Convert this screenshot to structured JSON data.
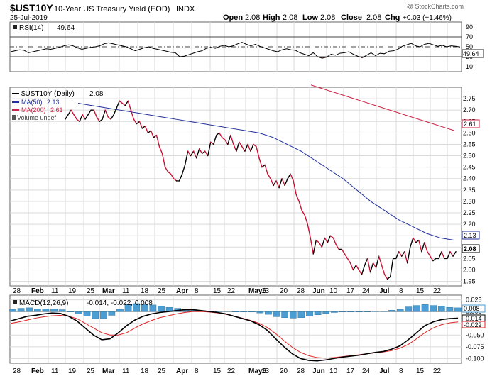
{
  "header": {
    "symbol": "$UST10Y",
    "name": "10-Year US Treasury Yield (EOD)",
    "exchange": "INDX",
    "date": "25-Jul-2019",
    "open_label": "Open",
    "open": "2.08",
    "high_label": "High",
    "high": "2.08",
    "low_label": "Low",
    "low": "2.08",
    "close_label": "Close",
    "close": "2.08",
    "chg_label": "Chg",
    "chg": "+0.03 (+1.46%)",
    "brand": "@ StockCharts.com"
  },
  "colors": {
    "price": "#000000",
    "price_down": "#cc1133",
    "ma50": "#1f2f9a",
    "ma200": "#cc2244",
    "rsi": "#000000",
    "rsi_fill": "#7a4a4a",
    "macd": "#000000",
    "signal": "#dd2222",
    "hist": "#4a9ed3",
    "grid": "#d9d9d9"
  },
  "chart_data": [
    {
      "type": "line",
      "panel": "rsi",
      "legend": [
        {
          "label": "RSI(14)",
          "value": "49.64"
        }
      ],
      "y_ticks": [
        "90",
        "70",
        "50",
        "30",
        "10"
      ],
      "ylim": [
        0,
        100
      ],
      "levels": [
        70,
        50,
        30
      ],
      "last_value_label": "49.64",
      "values": [
        40,
        42,
        44,
        43,
        38,
        40,
        42,
        44,
        46,
        45,
        47,
        49,
        52,
        54,
        52,
        48,
        45,
        47,
        49,
        50,
        52,
        56,
        58,
        56,
        54,
        52,
        50,
        46,
        42,
        45,
        48,
        50,
        47,
        45,
        43,
        41,
        39,
        38,
        30,
        31,
        34,
        37,
        40,
        42,
        47,
        49,
        47,
        51,
        53,
        50,
        52,
        56,
        59,
        55,
        52,
        55,
        51,
        48,
        45,
        42,
        40,
        44,
        46,
        44,
        43,
        38,
        35,
        32,
        38,
        30,
        27,
        29,
        35,
        33,
        37,
        38,
        40,
        35,
        31,
        28,
        33,
        38,
        32,
        37,
        36,
        41,
        42,
        45,
        51,
        54,
        57,
        52,
        50,
        55,
        57,
        54,
        51,
        53,
        50,
        52,
        51,
        49.64
      ]
    },
    {
      "type": "line",
      "panel": "price",
      "title": "10-Year US Treasury Yield (EOD)",
      "legend": [
        {
          "label": "$UST10Y (Daily)",
          "value": "2.08",
          "color": "#000000"
        },
        {
          "label": "MA(50)",
          "value": "2.13",
          "color": "#1f2f9a"
        },
        {
          "label": "MA(200)",
          "value": "2.61",
          "color": "#cc2244"
        },
        {
          "label": "Volume undef",
          "value": "",
          "color": "#444444"
        }
      ],
      "y_ticks": [
        "2.75",
        "2.70",
        "2.65",
        "2.60",
        "2.55",
        "2.50",
        "2.45",
        "2.40",
        "2.35",
        "2.30",
        "2.25",
        "2.20",
        "2.15",
        "2.10",
        "2.05",
        "2.00",
        "1.95"
      ],
      "ylim": [
        1.93,
        2.8
      ],
      "x_labels": [
        "28",
        "Feb",
        "11",
        "19",
        "25",
        "Mar",
        "11",
        "18",
        "25",
        "Apr",
        "8",
        "15",
        "22",
        "May6",
        "13",
        "20",
        "28",
        "Jun",
        "10",
        "17",
        "24",
        "Jul",
        "8",
        "15",
        "22"
      ],
      "last_value_labels": {
        "price": "2.08",
        "ma50": "2.13",
        "ma200": "2.61"
      },
      "series": [
        {
          "name": "$UST10Y",
          "values": [
            2.66,
            2.68,
            2.7,
            2.68,
            2.66,
            2.65,
            2.68,
            2.66,
            2.68,
            2.7,
            2.7,
            2.67,
            2.65,
            2.66,
            2.7,
            2.67,
            2.66,
            2.68,
            2.71,
            2.74,
            2.73,
            2.72,
            2.74,
            2.7,
            2.66,
            2.64,
            2.65,
            2.62,
            2.63,
            2.6,
            2.61,
            2.58,
            2.59,
            2.54,
            2.51,
            2.45,
            2.43,
            2.42,
            2.4,
            2.39,
            2.39,
            2.42,
            2.46,
            2.52,
            2.5,
            2.52,
            2.49,
            2.53,
            2.51,
            2.52,
            2.5,
            2.56,
            2.55,
            2.59,
            2.6,
            2.58,
            2.57,
            2.55,
            2.59,
            2.55,
            2.52,
            2.56,
            2.54,
            2.52,
            2.55,
            2.52,
            2.55,
            2.54,
            2.49,
            2.45,
            2.46,
            2.42,
            2.4,
            2.37,
            2.39,
            2.36,
            2.4,
            2.37,
            2.4,
            2.42,
            2.39,
            2.33,
            2.3,
            2.26,
            2.24,
            2.2,
            2.14,
            2.07,
            2.13,
            2.12,
            2.1,
            2.14,
            2.12,
            2.15,
            2.14,
            2.11,
            2.09,
            2.09,
            2.07,
            2.05,
            2.03,
            2.0,
            2.02,
            2.0,
            1.98,
            2.02,
            2.05,
            1.99,
            2.03,
            2.01,
            2.06,
            2.02,
            1.98,
            1.96,
            1.97,
            2.05,
            2.05,
            2.08,
            2.06,
            2.08,
            2.03,
            2.1,
            2.14,
            2.12,
            2.13,
            2.08,
            2.12,
            2.08,
            2.06,
            2.04,
            2.05,
            2.05,
            2.08,
            2.05,
            2.05,
            2.08,
            2.06,
            2.08
          ]
        },
        {
          "name": "MA(50)",
          "values": [
            2.73,
            2.72,
            2.71,
            2.7,
            2.69,
            2.68,
            2.67,
            2.66,
            2.65,
            2.64,
            2.63,
            2.62,
            2.61,
            2.6,
            2.58,
            2.55,
            2.52,
            2.48,
            2.44,
            2.4,
            2.35,
            2.3,
            2.26,
            2.22,
            2.19,
            2.16,
            2.14,
            2.13
          ]
        },
        {
          "name": "MA(200)",
          "values": [
            2.81,
            2.79,
            2.77,
            2.75,
            2.73,
            2.71,
            2.69,
            2.67,
            2.65,
            2.63,
            2.61
          ]
        }
      ]
    },
    {
      "type": "line",
      "panel": "macd",
      "legend": [
        {
          "label": "MACD(12,26,9)",
          "values": "-0.014, -0.022, 0.008"
        }
      ],
      "y_ticks": [
        "0.025",
        "0.000",
        "-0.025",
        "-0.050",
        "-0.075",
        "-0.100"
      ],
      "ylim": [
        -0.11,
        0.035
      ],
      "last_value_labels": {
        "hist": "0.008",
        "macd": "-0.014",
        "signal": "-0.022"
      },
      "x_labels": [
        "28",
        "Feb",
        "11",
        "19",
        "25",
        "Mar",
        "11",
        "18",
        "25",
        "Apr",
        "8",
        "15",
        "22",
        "May6",
        "13",
        "20",
        "28",
        "Jun",
        "10",
        "17",
        "24",
        "Jul",
        "8",
        "15",
        "22"
      ],
      "series": [
        {
          "name": "MACD",
          "values": [
            -0.02,
            -0.015,
            -0.01,
            -0.008,
            -0.005,
            -0.003,
            -0.004,
            -0.01,
            -0.02,
            -0.035,
            -0.05,
            -0.06,
            -0.058,
            -0.045,
            -0.03,
            -0.018,
            -0.01,
            -0.005,
            -0.002,
            0.0,
            0.002,
            0.004,
            0.004,
            0.002,
            0.0,
            -0.002,
            -0.005,
            -0.01,
            -0.015,
            -0.02,
            -0.028,
            -0.04,
            -0.058,
            -0.075,
            -0.09,
            -0.1,
            -0.104,
            -0.105,
            -0.103,
            -0.1,
            -0.097,
            -0.095,
            -0.093,
            -0.09,
            -0.087,
            -0.085,
            -0.08,
            -0.073,
            -0.06,
            -0.045,
            -0.03,
            -0.022,
            -0.017,
            -0.015,
            -0.014
          ]
        },
        {
          "name": "Signal",
          "values": [
            -0.025,
            -0.022,
            -0.018,
            -0.014,
            -0.011,
            -0.009,
            -0.008,
            -0.01,
            -0.015,
            -0.025,
            -0.035,
            -0.045,
            -0.05,
            -0.05,
            -0.045,
            -0.035,
            -0.026,
            -0.019,
            -0.013,
            -0.009,
            -0.005,
            -0.002,
            0.0,
            0.0,
            -0.001,
            -0.003,
            -0.006,
            -0.01,
            -0.014,
            -0.019,
            -0.025,
            -0.034,
            -0.047,
            -0.062,
            -0.076,
            -0.087,
            -0.094,
            -0.098,
            -0.099,
            -0.098,
            -0.096,
            -0.094,
            -0.092,
            -0.09,
            -0.088,
            -0.086,
            -0.083,
            -0.078,
            -0.07,
            -0.058,
            -0.045,
            -0.035,
            -0.028,
            -0.024,
            -0.022
          ]
        },
        {
          "name": "Histogram",
          "values": [
            0.005,
            0.007,
            0.008,
            0.006,
            0.006,
            0.006,
            0.004,
            0.0,
            -0.005,
            -0.01,
            -0.015,
            -0.015,
            -0.008,
            0.005,
            0.015,
            0.017,
            0.016,
            0.014,
            0.011,
            0.009,
            0.007,
            0.006,
            0.004,
            0.002,
            0.001,
            0.001,
            0.001,
            0.0,
            -0.001,
            -0.001,
            -0.003,
            -0.006,
            -0.011,
            -0.013,
            -0.014,
            -0.013,
            -0.01,
            -0.007,
            -0.004,
            -0.002,
            -0.001,
            -0.001,
            -0.001,
            0.0,
            0.001,
            0.001,
            0.003,
            0.005,
            0.01,
            0.013,
            0.015,
            0.013,
            0.011,
            0.009,
            0.008
          ]
        }
      ]
    }
  ]
}
